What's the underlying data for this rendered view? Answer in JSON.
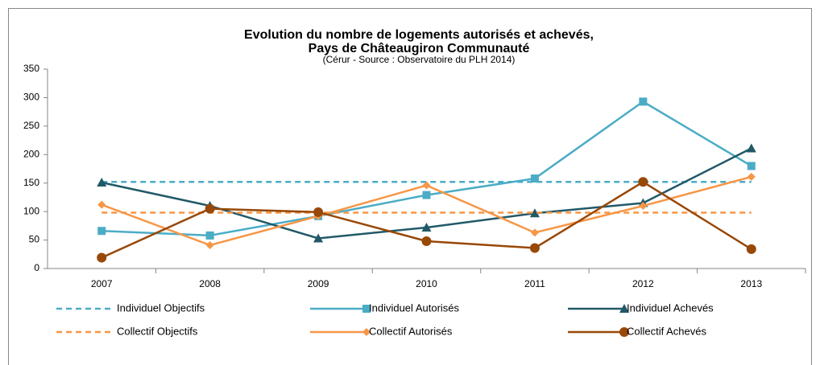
{
  "chart_data": {
    "type": "line",
    "title": [
      "Evolution du nombre de logements autorisés et achevés,",
      "Pays de Châteaugiron Communauté"
    ],
    "subtitle": "(Cérur - Source : Observatoire du PLH 2014)",
    "categories": [
      "2007",
      "2008",
      "2009",
      "2010",
      "2011",
      "2012",
      "2013"
    ],
    "ylim": [
      0,
      350
    ],
    "yticks": [
      0,
      50,
      100,
      150,
      200,
      250,
      300,
      350
    ],
    "series": [
      {
        "name": "Individuel  Objectifs",
        "color": "#4bacc6",
        "dashed": true,
        "marker": null,
        "values": [
          152,
          152,
          152,
          152,
          152,
          152,
          152
        ]
      },
      {
        "name": "Individuel  Autorisés",
        "color": "#4bacc6",
        "dashed": false,
        "marker": "square",
        "values": [
          66,
          58,
          92,
          129,
          158,
          293,
          180
        ]
      },
      {
        "name": "Individuel  Achevés",
        "color": "#215968",
        "dashed": false,
        "marker": "triangle",
        "values": [
          151,
          110,
          53,
          72,
          97,
          115,
          211
        ]
      },
      {
        "name": "Collectif  Objectifs",
        "color": "#f79646",
        "dashed": true,
        "marker": null,
        "values": [
          98,
          98,
          98,
          98,
          98,
          98,
          98
        ]
      },
      {
        "name": "Collectif  Autorisés",
        "color": "#f79646",
        "dashed": false,
        "marker": "diamond",
        "values": [
          112,
          41,
          92,
          146,
          63,
          110,
          161
        ]
      },
      {
        "name": "Collectif  Achevés",
        "color": "#984807",
        "dashed": false,
        "marker": "circle",
        "values": [
          19,
          105,
          99,
          48,
          36,
          152,
          34
        ]
      }
    ]
  }
}
